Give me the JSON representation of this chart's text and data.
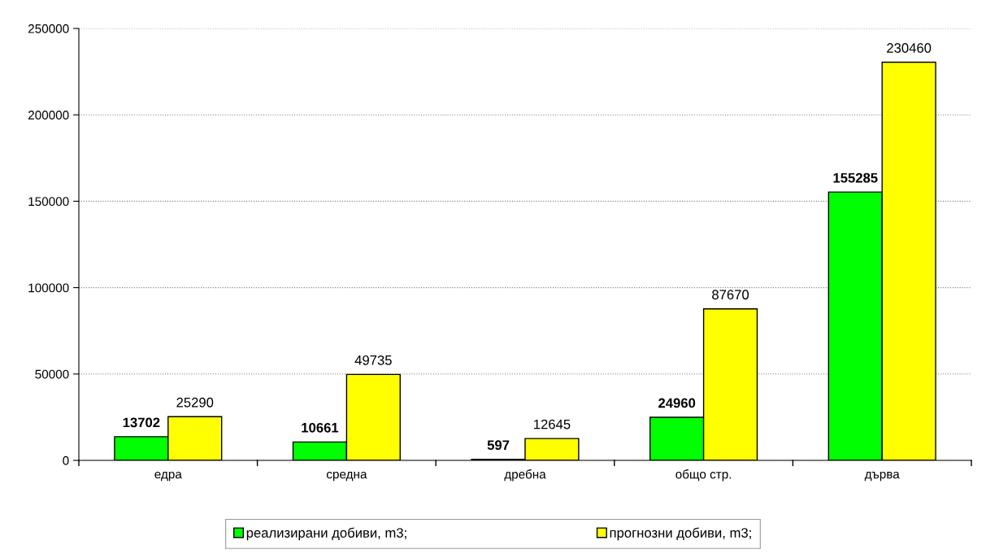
{
  "chart_data": {
    "type": "bar",
    "categories": [
      "едра",
      "средна",
      "дребна",
      "общо стр.",
      "дърва"
    ],
    "series": [
      {
        "name": "реализирани добиви, m3;",
        "color": "#00ff00",
        "values": [
          13702,
          10661,
          597,
          24960,
          155285
        ]
      },
      {
        "name": "прогнозни добиви, m3;",
        "color": "#ffff00",
        "values": [
          25290,
          49735,
          12645,
          87670,
          230460
        ]
      }
    ],
    "ylim": [
      0,
      250000
    ],
    "yticks": [
      0,
      50000,
      100000,
      150000,
      200000,
      250000
    ],
    "grid": "y",
    "legend": "bottom",
    "data_labels": true
  }
}
